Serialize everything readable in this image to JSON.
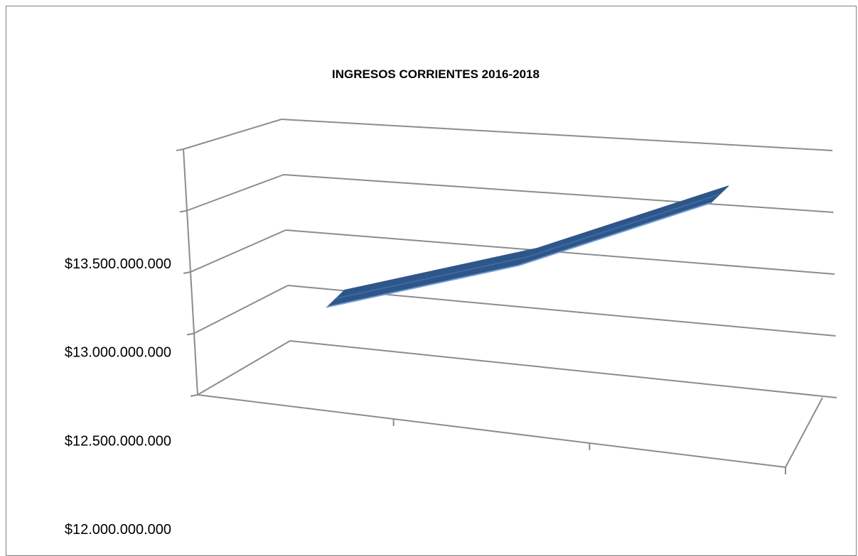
{
  "chart_data": {
    "type": "line",
    "title": "INGRESOS CORRIENTES 2016-2018",
    "style": "3d-line",
    "categories": [
      "",
      "",
      ""
    ],
    "series": [
      {
        "values": [
          13150000000,
          13550000000,
          14150000000
        ]
      }
    ],
    "y_tick_labels": [
      "$12.000.000.000",
      "$12.500.000.000",
      "$13.000.000.000",
      "$13.500.000.000"
    ],
    "ylim": [
      12000000000,
      14250000000
    ],
    "grid": true,
    "legend": "none",
    "colors": {
      "series": "#2e5689",
      "series_top": "#3b6aa6",
      "series_edge": "#6f9bd1",
      "grid": "#8c8c8c",
      "frame": "#7f7f7f"
    }
  }
}
